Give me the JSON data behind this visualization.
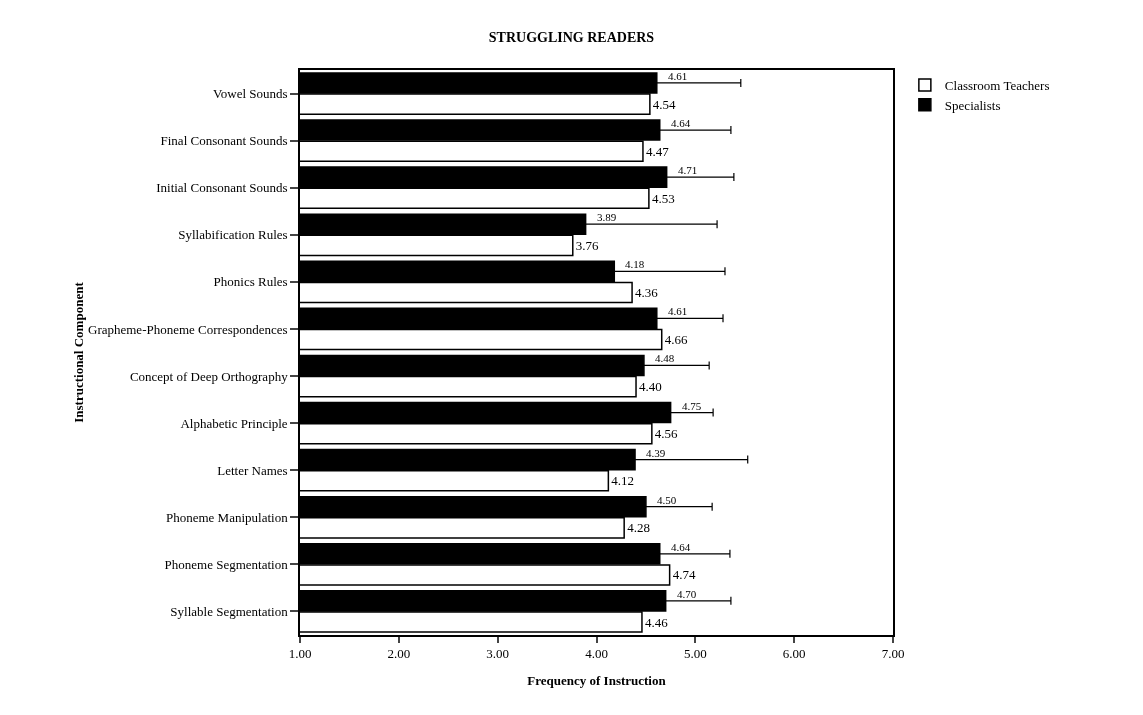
{
  "chart_data": {
    "type": "bar",
    "orientation": "horizontal",
    "title": "STRUGGLING READERS",
    "xlabel": "Frequency of Instruction",
    "ylabel": "Instructional Component",
    "categories": [
      "Vowel Sounds",
      "Final Consonant Sounds",
      "Initial Consonant Sounds",
      "Syllabification Rules",
      "Phonics Rules",
      "Grapheme-Phoneme Correspondences",
      "Concept of Deep Orthography",
      "Alphabetic Principle",
      "Letter Names",
      "Phoneme Manipulation",
      "Phoneme Segmentation",
      "Syllable Segmentation"
    ],
    "series": [
      {
        "name": "Specialists",
        "color": "#000000",
        "values": [
          4.61,
          4.64,
          4.71,
          3.89,
          4.18,
          4.61,
          4.48,
          4.75,
          4.39,
          4.5,
          4.64,
          4.7
        ],
        "value_labels": [
          "4.61",
          "4.64",
          "4.71",
          "3.89",
          "4.18",
          "4.61",
          "4.48",
          "4.75",
          "4.39",
          "4.50",
          "4.64",
          "4.70"
        ],
        "errors": [
          0.85,
          0.72,
          0.68,
          1.33,
          1.12,
          0.67,
          0.66,
          0.43,
          1.14,
          0.67,
          0.71,
          0.66
        ]
      },
      {
        "name": "Classroom Teachers",
        "color": "#ffffff",
        "values": [
          4.54,
          4.47,
          4.53,
          3.76,
          4.36,
          4.66,
          4.4,
          4.56,
          4.12,
          4.28,
          4.74,
          4.46
        ],
        "value_labels": [
          "4.54",
          "4.47",
          "4.53",
          "3.76",
          "4.36",
          "4.66",
          "4.40",
          "4.56",
          "4.12",
          "4.28",
          "4.74",
          "4.46"
        ]
      }
    ],
    "xlim": [
      1,
      7
    ],
    "xticks": [
      {
        "value": 1,
        "label": "1.00"
      },
      {
        "value": 2,
        "label": "2.00"
      },
      {
        "value": 3,
        "label": "3.00"
      },
      {
        "value": 4,
        "label": "4.00"
      },
      {
        "value": 5,
        "label": "5.00"
      },
      {
        "value": 6,
        "label": "6.00"
      },
      {
        "value": 7,
        "label": "7.00"
      }
    ],
    "grid": false,
    "legend": "top right"
  }
}
